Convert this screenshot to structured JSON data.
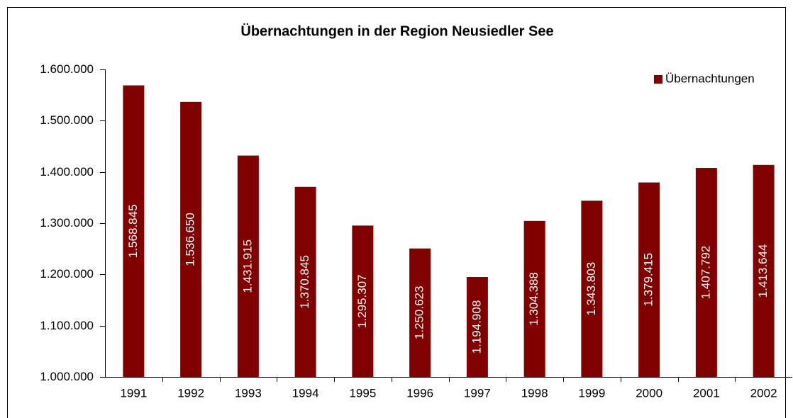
{
  "chart_data": {
    "type": "bar",
    "title": "Übernachtungen in der Region Neusiedler See",
    "categories": [
      "1991",
      "1992",
      "1993",
      "1994",
      "1995",
      "1996",
      "1997",
      "1998",
      "1999",
      "2000",
      "2001",
      "2002"
    ],
    "series": [
      {
        "name": "Übernachtungen",
        "color": "#800000",
        "values": [
          1568845,
          1536650,
          1431915,
          1370845,
          1295307,
          1250623,
          1194908,
          1304388,
          1343803,
          1379415,
          1407792,
          1413644
        ],
        "value_labels": [
          "1.568.845",
          "1.536.650",
          "1.431.915",
          "1.370.845",
          "1.295.307",
          "1.250.623",
          "1.194.908",
          "1.304.388",
          "1.343.803",
          "1.379.415",
          "1.407.792",
          "1.413.644"
        ]
      }
    ],
    "ylim": [
      1000000,
      1600000
    ],
    "yticks": [
      {
        "value": 1000000,
        "label": "1.000.000"
      },
      {
        "value": 1100000,
        "label": "1.100.000"
      },
      {
        "value": 1200000,
        "label": "1.200.000"
      },
      {
        "value": 1300000,
        "label": "1.300.000"
      },
      {
        "value": 1400000,
        "label": "1.400.000"
      },
      {
        "value": 1500000,
        "label": "1.500.000"
      },
      {
        "value": 1600000,
        "label": "1.600.000"
      }
    ],
    "grid": false,
    "legend": "top-right"
  }
}
